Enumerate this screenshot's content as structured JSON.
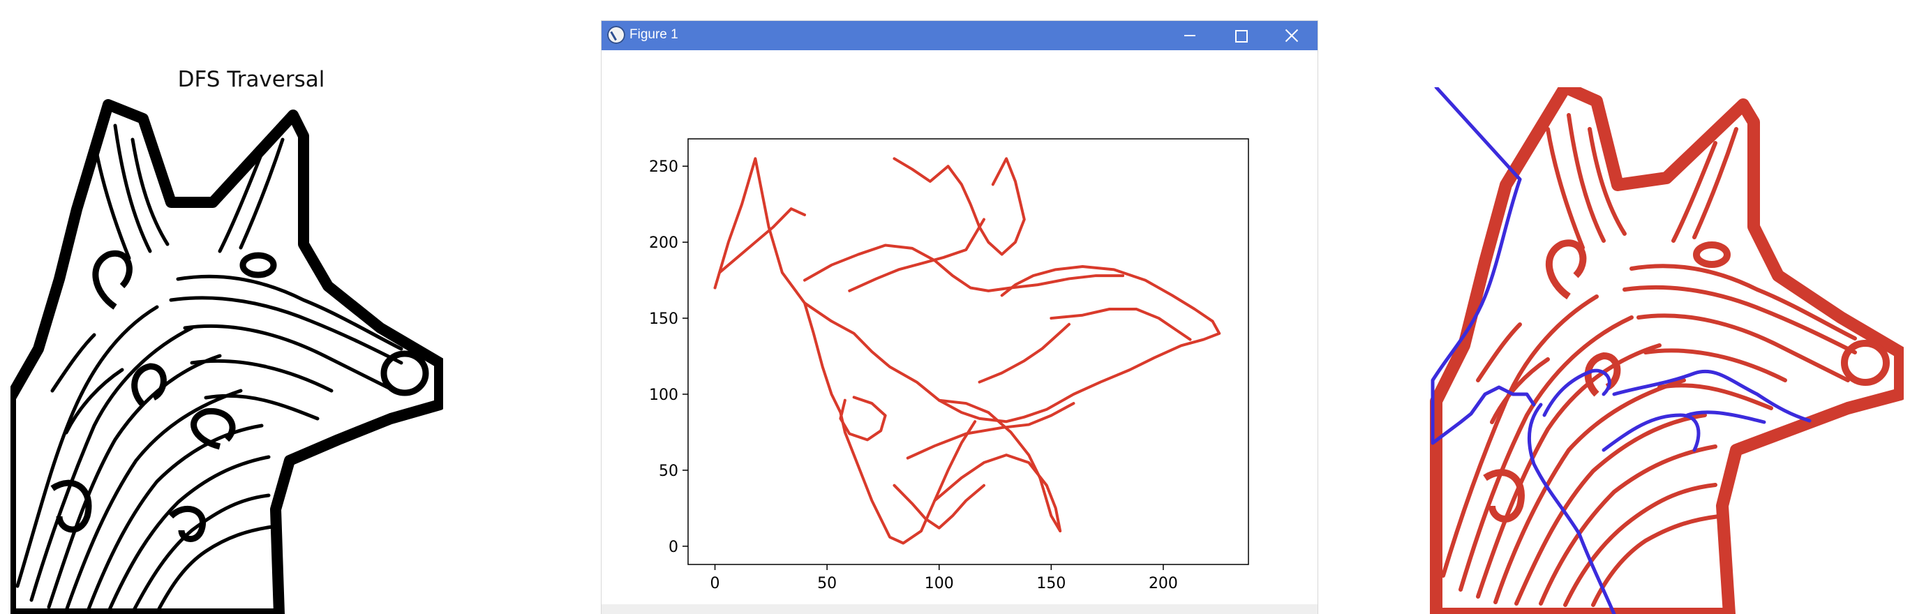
{
  "left_panel": {
    "title": "DFS Traversal",
    "art_icon": "dog-head-lineart-icon"
  },
  "window": {
    "title": "Figure 1",
    "app_icon": "matplotlib-icon",
    "buttons": {
      "minimize": "minimize-icon",
      "maximize": "maximize-icon",
      "close": "close-icon"
    }
  },
  "colors": {
    "titlebar": "#4f7bd6",
    "path_red": "#d93a2b",
    "trace_blue": "#3b2bdc"
  },
  "chart_data": {
    "type": "line",
    "title": "",
    "xlabel": "",
    "ylabel": "",
    "xlim": [
      -12,
      238
    ],
    "ylim": [
      -12,
      268
    ],
    "x_ticks": [
      0,
      50,
      100,
      150,
      200
    ],
    "y_ticks": [
      0,
      50,
      100,
      150,
      200,
      250
    ],
    "grid": false,
    "series": [
      {
        "color": "#d93a2b",
        "segments": [
          [
            [
              0,
              170
            ],
            [
              6,
              200
            ],
            [
              12,
              225
            ],
            [
              18,
              255
            ],
            [
              24,
              210
            ],
            [
              30,
              180
            ],
            [
              40,
              160
            ],
            [
              52,
              148
            ],
            [
              62,
              140
            ],
            [
              70,
              128
            ],
            [
              78,
              118
            ],
            [
              90,
              108
            ],
            [
              100,
              96
            ],
            [
              110,
              88
            ],
            [
              118,
              84
            ],
            [
              130,
              82
            ],
            [
              138,
              85
            ],
            [
              148,
              90
            ],
            [
              160,
              100
            ],
            [
              172,
              108
            ],
            [
              185,
              116
            ],
            [
              196,
              124
            ],
            [
              208,
              132
            ],
            [
              218,
              136
            ],
            [
              225,
              140
            ],
            [
              222,
              148
            ],
            [
              214,
              156
            ],
            [
              204,
              165
            ],
            [
              192,
              175
            ],
            [
              178,
              182
            ],
            [
              164,
              184
            ],
            [
              152,
              182
            ],
            [
              142,
              178
            ],
            [
              134,
              172
            ],
            [
              128,
              165
            ]
          ],
          [
            [
              40,
              160
            ],
            [
              44,
              140
            ],
            [
              48,
              118
            ],
            [
              52,
              100
            ],
            [
              56,
              88
            ],
            [
              58,
              75
            ],
            [
              62,
              60
            ],
            [
              66,
              45
            ],
            [
              70,
              30
            ],
            [
              74,
              18
            ],
            [
              78,
              6
            ],
            [
              84,
              2
            ],
            [
              92,
              10
            ],
            [
              98,
              30
            ],
            [
              104,
              50
            ],
            [
              110,
              68
            ],
            [
              116,
              82
            ]
          ],
          [
            [
              98,
              30
            ],
            [
              110,
              45
            ],
            [
              120,
              55
            ],
            [
              130,
              60
            ],
            [
              140,
              55
            ],
            [
              148,
              40
            ],
            [
              152,
              25
            ],
            [
              154,
              10
            ],
            [
              150,
              20
            ],
            [
              145,
              45
            ],
            [
              140,
              60
            ],
            [
              132,
              75
            ],
            [
              122,
              88
            ],
            [
              112,
              94
            ],
            [
              100,
              96
            ]
          ],
          [
            [
              80,
              255
            ],
            [
              88,
              248
            ],
            [
              96,
              240
            ],
            [
              104,
              250
            ],
            [
              110,
              238
            ],
            [
              114,
              225
            ],
            [
              118,
              210
            ],
            [
              122,
              200
            ],
            [
              128,
              192
            ],
            [
              134,
              200
            ],
            [
              138,
              215
            ],
            [
              134,
              240
            ],
            [
              130,
              255
            ],
            [
              124,
              238
            ]
          ],
          [
            [
              40,
              175
            ],
            [
              52,
              185
            ],
            [
              64,
              192
            ],
            [
              76,
              198
            ],
            [
              88,
              196
            ],
            [
              98,
              188
            ],
            [
              106,
              178
            ],
            [
              114,
              170
            ],
            [
              122,
              168
            ],
            [
              132,
              170
            ],
            [
              144,
              172
            ],
            [
              158,
              176
            ],
            [
              170,
              178
            ],
            [
              182,
              178
            ]
          ],
          [
            [
              150,
              150
            ],
            [
              164,
              152
            ],
            [
              176,
              156
            ],
            [
              188,
              156
            ],
            [
              198,
              150
            ],
            [
              206,
              142
            ],
            [
              212,
              136
            ]
          ],
          [
            [
              62,
              98
            ],
            [
              70,
              94
            ],
            [
              76,
              86
            ],
            [
              74,
              76
            ],
            [
              68,
              70
            ],
            [
              60,
              74
            ],
            [
              56,
              84
            ],
            [
              58,
              96
            ]
          ],
          [
            [
              86,
              58
            ],
            [
              98,
              66
            ],
            [
              112,
              74
            ],
            [
              128,
              78
            ],
            [
              140,
              80
            ],
            [
              150,
              86
            ],
            [
              160,
              94
            ]
          ],
          [
            [
              2,
              180
            ],
            [
              10,
              190
            ],
            [
              18,
              200
            ],
            [
              26,
              210
            ],
            [
              34,
              222
            ],
            [
              40,
              218
            ]
          ],
          [
            [
              60,
              168
            ],
            [
              72,
              176
            ],
            [
              82,
              182
            ],
            [
              92,
              186
            ],
            [
              102,
              190
            ],
            [
              112,
              195
            ],
            [
              116,
              205
            ],
            [
              120,
              215
            ]
          ],
          [
            [
              118,
              108
            ],
            [
              128,
              114
            ],
            [
              138,
              122
            ],
            [
              146,
              130
            ],
            [
              152,
              138
            ],
            [
              158,
              146
            ]
          ],
          [
            [
              80,
              40
            ],
            [
              88,
              28
            ],
            [
              94,
              18
            ],
            [
              100,
              12
            ],
            [
              106,
              20
            ],
            [
              112,
              30
            ],
            [
              120,
              40
            ]
          ]
        ]
      }
    ]
  },
  "right_panel": {
    "art_icon": "dog-head-traced-icon"
  }
}
